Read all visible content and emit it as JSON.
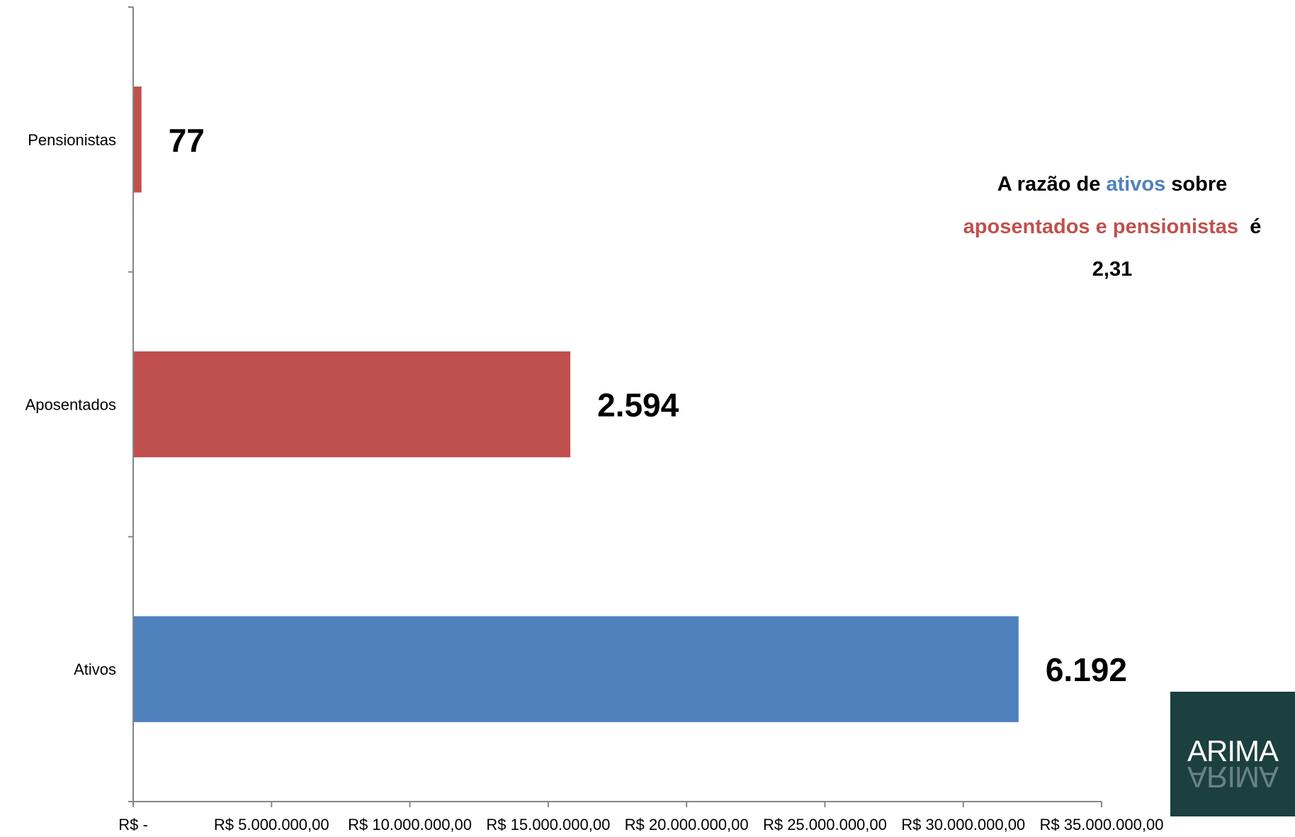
{
  "chart_data": {
    "type": "bar",
    "orientation": "horizontal",
    "categories": [
      "Pensionistas",
      "Aposentados",
      "Ativos"
    ],
    "values": [
      300000,
      15800000,
      32000000
    ],
    "data_labels": [
      "77",
      "2.594",
      "6.192"
    ],
    "bar_colors": [
      "#C0504D",
      "#C0504D",
      "#4F81BD"
    ],
    "xlim": [
      0,
      35000000
    ],
    "x_ticks": [
      0,
      5000000,
      10000000,
      15000000,
      20000000,
      25000000,
      30000000,
      35000000
    ],
    "x_tick_labels": [
      "R$ -",
      "R$ 5.000.000,00",
      "R$ 10.000.000,00",
      "R$ 15.000.000,00",
      "R$ 20.000.000,00",
      "R$ 25.000.000,00",
      "R$ 30.000.000,00",
      "R$ 35.000.000,00"
    ],
    "grid": false,
    "legend": "none"
  },
  "annotation": {
    "prefix": "A razão de ",
    "ativos": "ativos",
    "sobre": " sobre",
    "aposentados_pensionistas": "aposentados e pensionistas",
    "e": "é",
    "ratio": "2,31",
    "colors": {
      "ativos": "#4F81BD",
      "aposentados": "#C0504D"
    }
  },
  "logo": {
    "text": "ARIMA",
    "background": "#1C3F40"
  }
}
